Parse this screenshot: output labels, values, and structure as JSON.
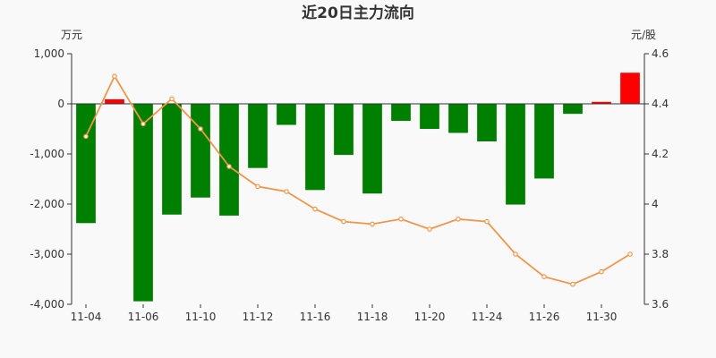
{
  "chart_data": {
    "type": "bar",
    "title": "近20日主力流向",
    "left_axis": {
      "unit": "万元",
      "ylim": [
        -4000,
        1000
      ],
      "ticks": [
        1000,
        0,
        -1000,
        -2000,
        -3000,
        -4000
      ],
      "tick_labels": [
        "1,000",
        "0",
        "-1,000",
        "-2,000",
        "-3,000",
        "-4,000"
      ]
    },
    "right_axis": {
      "unit": "元/股",
      "ylim": [
        3.6,
        4.6
      ],
      "ticks": [
        4.6,
        4.4,
        4.2,
        4,
        3.8,
        3.6
      ],
      "tick_labels": [
        "4.6",
        "4.4",
        "4.2",
        "4",
        "3.8",
        "3.6"
      ]
    },
    "x_tick_labels": [
      "11-04",
      "11-06",
      "11-10",
      "11-12",
      "11-16",
      "11-18",
      "11-20",
      "11-24",
      "11-26",
      "11-30"
    ],
    "x_tick_every": 2,
    "series": [
      {
        "type": "bar",
        "axis": "left",
        "positive_color": "#ff0000",
        "negative_color": "#008000",
        "values": [
          -2380,
          90,
          -3940,
          -2210,
          -1870,
          -2230,
          -1280,
          -420,
          -1720,
          -1020,
          -1790,
          -340,
          -500,
          -580,
          -750,
          -2010,
          -1490,
          -200,
          40,
          620
        ]
      },
      {
        "type": "line",
        "axis": "right",
        "color": "#f0964b",
        "values": [
          4.27,
          4.51,
          4.32,
          4.42,
          4.3,
          4.15,
          4.07,
          4.05,
          3.98,
          3.93,
          3.92,
          3.94,
          3.9,
          3.94,
          3.93,
          3.8,
          3.71,
          3.68,
          3.73,
          3.8
        ]
      }
    ]
  }
}
